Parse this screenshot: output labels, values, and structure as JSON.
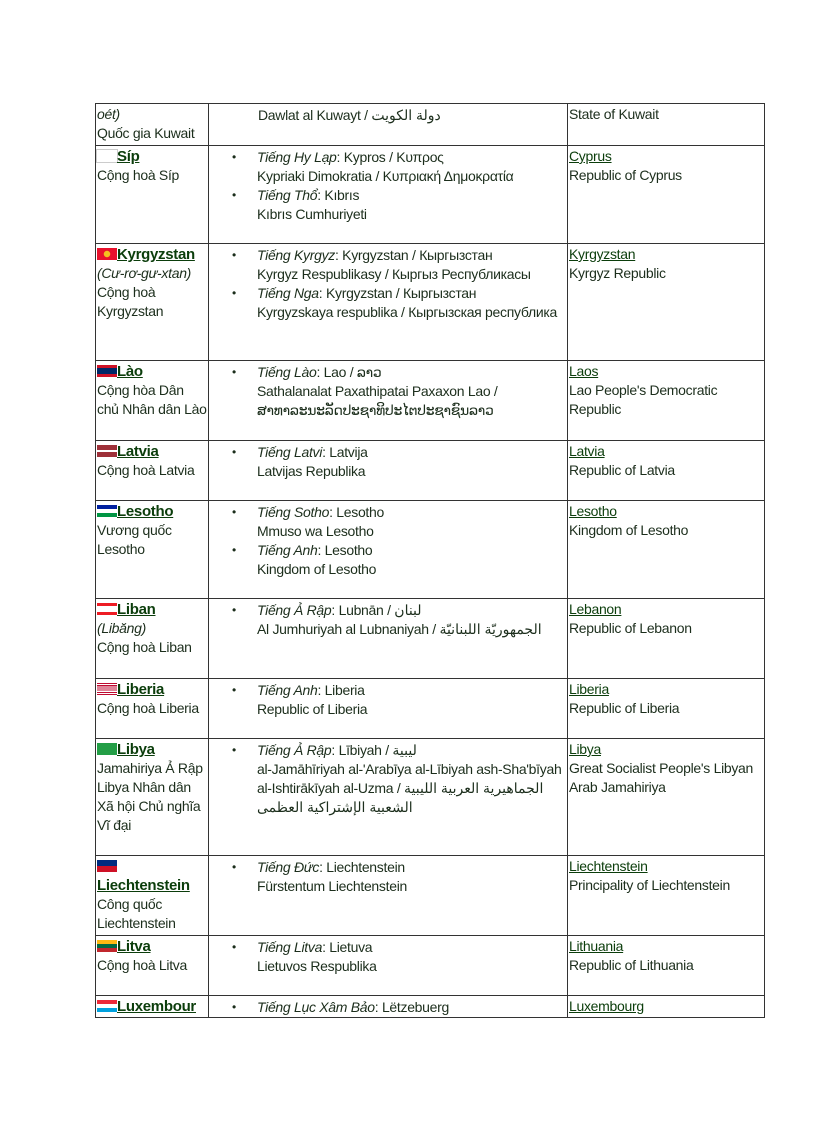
{
  "rows": [
    {
      "name": "",
      "alt": "oét)",
      "desc": "Quốc gia Kuwait",
      "flag": "",
      "native_plain": "Dawlat al Kuwayt / دولة  الكويت",
      "langs": [],
      "en_link": "",
      "en_full": "State of Kuwait"
    },
    {
      "name": "Síp",
      "alt": "",
      "desc": "Cộng hoà Síp",
      "flag": "cyprus",
      "langs": [
        {
          "lang": "Tiếng Hy Lạp",
          "short": "Kypros / Κυπρος",
          "full": "Kypriaki  Dimokratia  / Κυπριακή Δημοκρατία"
        },
        {
          "lang": "Tiếng Thổ",
          "short": "Kıbrıs",
          "full": "Kıbrıs  Cumhuriyeti"
        }
      ],
      "en_link": "Cyprus",
      "en_full": "Republic  of Cyprus"
    },
    {
      "name": "Kyrgyzstan",
      "alt": "(Cư-rơ-gư-xtan)",
      "desc": "Cộng hoà Kyrgyzstan",
      "flag": "kyrgyzstan",
      "langs": [
        {
          "lang": "Tiếng Kyrgyz",
          "short": "Kyrgyzstan / Кыргызстан",
          "full": "Kyrgyz Respublikasy  / Кыргыз Республикасы"
        },
        {
          "lang": "Tiếng Nga",
          "short": "Kyrgyzstan / Кыргызстан",
          "full": "Kyrgyzskaya respublika  / Кыргызская республика"
        }
      ],
      "en_link": "Kyrgyzstan",
      "en_full": "Kyrgyz Republic"
    },
    {
      "name": "Lào",
      "alt": "",
      "desc": "Cộng hòa Dân chủ Nhân dân Lào",
      "flag": "laos",
      "langs": [
        {
          "lang": "Tiếng Lào",
          "short": "Lao / ລາວ",
          "full": "Sathalanalat Paxathipatai Paxaxon Lao / ສາທາລະນະລັດປະຊາທິປະໄຕປະຊາຊົນລາວ"
        }
      ],
      "en_link": "Laos",
      "en_full": "Lao People's Democratic Republic"
    },
    {
      "name": "Latvia",
      "alt": "",
      "desc": "Cộng hoà Latvia",
      "flag": "latvia",
      "langs": [
        {
          "lang": "Tiếng Latvi",
          "short": "Latvija",
          "full": "Latvijas Republika"
        }
      ],
      "en_link": "Latvia",
      "en_full": "Republic  of Latvia"
    },
    {
      "name": "Lesotho",
      "alt": "",
      "desc": "Vương quốc Lesotho",
      "flag": "lesotho",
      "langs": [
        {
          "lang": "Tiếng Sotho",
          "short": "Lesotho",
          "full": "Mmuso wa  Lesotho"
        },
        {
          "lang": "Tiếng Anh",
          "short": "Lesotho",
          "full": "Kingdom of Lesotho"
        }
      ],
      "en_link": "Lesotho",
      "en_full": "Kingdom of Lesotho"
    },
    {
      "name": "Liban",
      "alt": "(Libăng)",
      "desc": "Cộng hoà Liban",
      "flag": "lebanon",
      "langs": [
        {
          "lang": "Tiếng Ả Rập",
          "short": "Lubnān / لبنان",
          "full": "Al Jumhuriyah al Lubnaniyah / الجمهوريّة اللبنانيّة"
        }
      ],
      "en_link": "Lebanon",
      "en_full": "Republic  of Lebanon"
    },
    {
      "name": "Liberia",
      "alt": "",
      "desc": "Cộng hoà Liberia",
      "flag": "liberia",
      "langs": [
        {
          "lang": "Tiếng Anh",
          "short": "Liberia",
          "full": "Republic  of Liberia"
        }
      ],
      "en_link": "Liberia",
      "en_full": "Republic  of Liberia"
    },
    {
      "name": "Libya",
      "alt": "",
      "desc": "Jamahiriya Ả Rập Libya Nhân dân Xã hội Chủ nghĩa Vĩ đại",
      "flag": "libya",
      "langs": [
        {
          "lang": "Tiếng Ả Rập",
          "short": "Lībiyah  / ليبية",
          "full": "al-Jamāhīriyah al-'Arabīya al-Lībiyah ash-Sha'bīyah al-Ishtirākīyah al-Uzma / الجماهيرية العربية الليبية الشعبية الإشتراكية العظمى"
        }
      ],
      "en_link": "Libya",
      "en_full": "Great Socialist People's Libyan Arab Jamahiriya"
    },
    {
      "name": "Liechtenstein",
      "alt": "",
      "desc": "Công quốc Liechtenstein",
      "flag": "liechtenstein",
      "langs": [
        {
          "lang": "Tiếng Đức",
          "short": "Liechtenstein",
          "full": "Fürstentum Liechtenstein"
        }
      ],
      "en_link": "Liechtenstein",
      "en_full": "Principality  of Liechtenstein"
    },
    {
      "name": "Litva",
      "alt": "",
      "desc": "Cộng hoà Litva",
      "flag": "lithuania",
      "langs": [
        {
          "lang": "Tiếng Litva",
          "short": "Lietuva",
          "full": "Lietuvos Respublika"
        }
      ],
      "en_link": "Lithuania",
      "en_full": "Republic  of Lithuania"
    },
    {
      "name": "Luxembour",
      "alt": "",
      "desc": "",
      "flag": "luxembourg",
      "langs": [
        {
          "lang": "Tiếng Lục Xâm Bảo",
          "short": "Lëtzebuerg",
          "full": ""
        }
      ],
      "en_link": "Luxembourg",
      "en_full": ""
    }
  ],
  "flag_colors": {
    "cyprus": "linear-gradient(#fff,#fff)",
    "kyrgyzstan": "radial-gradient(circle,#f4c020 25%,#e8112d 30%)",
    "laos": "linear-gradient(#ce1126 25%,#002868 25%,#002868 75%,#ce1126 75%)",
    "latvia": "linear-gradient(#9e3039 40%,#fff 40%,#fff 60%,#9e3039 60%)",
    "lesotho": "linear-gradient(#00209f 33%,#fff 33%,#fff 66%,#009543 66%)",
    "lebanon": "linear-gradient(#ed1c24 25%,#fff 25%,#fff 75%,#ed1c24 75%)",
    "liberia": "repeating-linear-gradient(#bf0a30 0 1.1px,#fff 1.1px 2.2px)",
    "libya": "linear-gradient(#239e46,#239e46)",
    "liechtenstein": "linear-gradient(#002b7f 50%,#ce1126 50%)",
    "lithuania": "linear-gradient(#fdb913 33%,#006a44 33%,#006a44 66%,#c1272d 66%)",
    "luxembourg": "linear-gradient(#ed2939 33%,#fff 33%,#fff 66%,#00a1de 66%)"
  }
}
